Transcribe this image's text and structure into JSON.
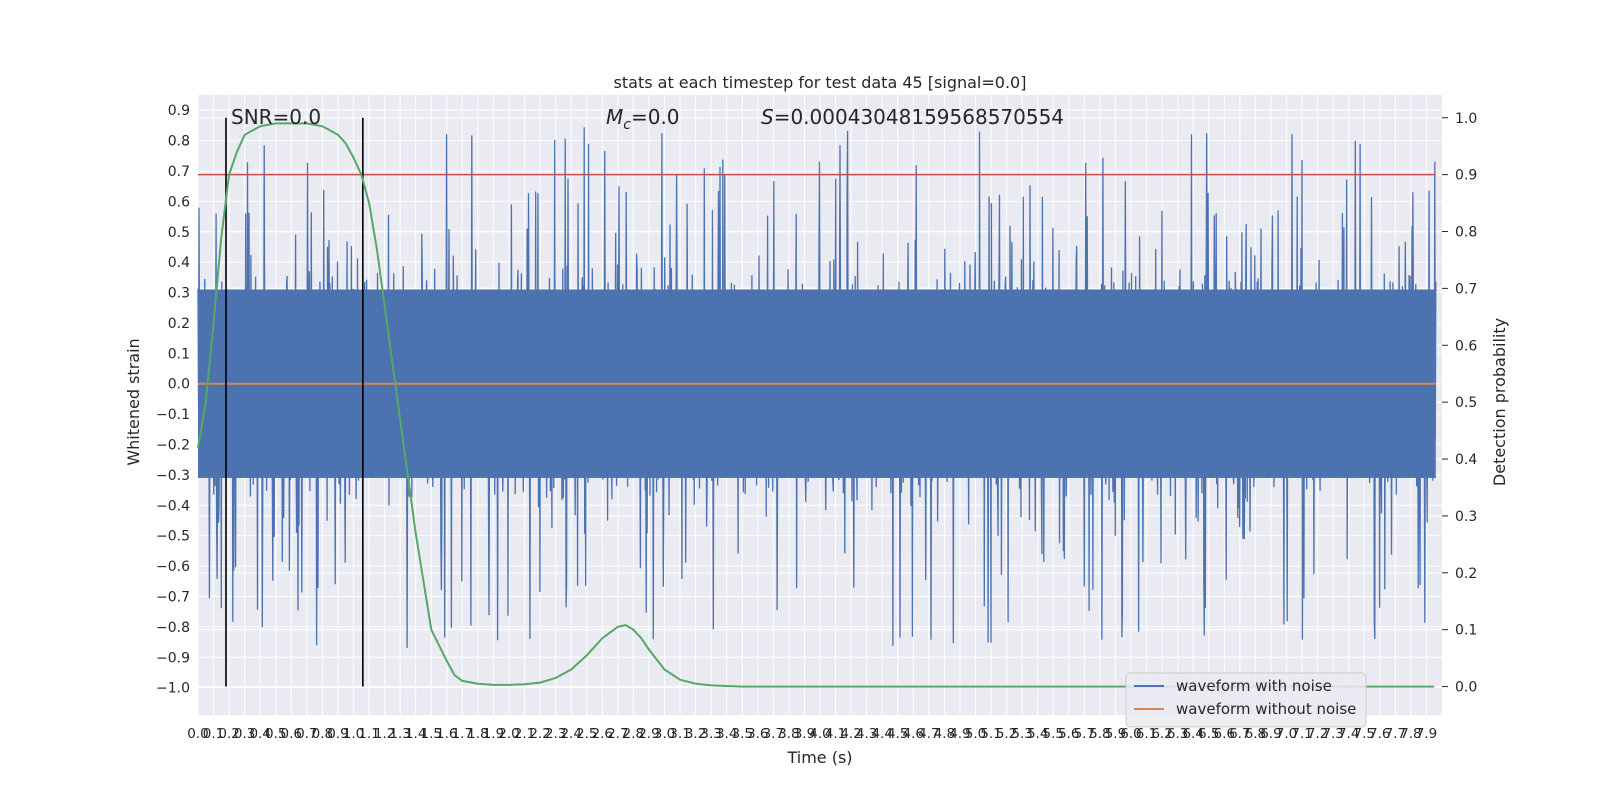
{
  "chart_data": {
    "type": "line",
    "title": "stats at each timestep for test data 45 [signal=0.0]",
    "xlabel": "Time (s)",
    "ylabel": "Whitened strain",
    "y2label": "Detection probability",
    "xlim": [
      0.0,
      8.0
    ],
    "ylim": [
      -1.09,
      0.95
    ],
    "y2lim": [
      -0.05,
      1.04
    ],
    "grid": true,
    "x_ticks": [
      "0.0",
      "0.1",
      "0.2",
      "0.3",
      "0.4",
      "0.5",
      "0.6",
      "0.7",
      "0.8",
      "0.9",
      "1.0",
      "1.1",
      "1.2",
      "1.3",
      "1.4",
      "1.5",
      "1.6",
      "1.7",
      "1.8",
      "1.9",
      "2.0",
      "2.1",
      "2.2",
      "2.3",
      "2.4",
      "2.5",
      "2.6",
      "2.7",
      "2.8",
      "2.9",
      "3.0",
      "3.1",
      "3.2",
      "3.3",
      "3.4",
      "3.5",
      "3.6",
      "3.7",
      "3.8",
      "3.9",
      "4.0",
      "4.1",
      "4.2",
      "4.3",
      "4.4",
      "4.5",
      "4.6",
      "4.7",
      "4.8",
      "4.9",
      "5.0",
      "5.1",
      "5.2",
      "5.3",
      "5.4",
      "5.5",
      "5.6",
      "5.7",
      "5.8",
      "5.9",
      "6.0",
      "6.1",
      "6.2",
      "6.3",
      "6.4",
      "6.5",
      "6.6",
      "6.7",
      "6.8",
      "6.9",
      "7.0",
      "7.1",
      "7.2",
      "7.3",
      "7.4",
      "7.5",
      "7.6",
      "7.7",
      "7.8",
      "7.9"
    ],
    "y_ticks": [
      "0.9",
      "0.8",
      "0.7",
      "0.6",
      "0.5",
      "0.4",
      "0.3",
      "0.2",
      "0.1",
      "0.0",
      "−0.1",
      "−0.2",
      "−0.3",
      "−0.4",
      "−0.5",
      "−0.6",
      "−0.7",
      "−0.8",
      "−0.9",
      "−1.0"
    ],
    "y2_ticks": [
      "1.0",
      "0.9",
      "0.8",
      "0.7",
      "0.6",
      "0.5",
      "0.4",
      "0.3",
      "0.2",
      "0.1",
      "0.0"
    ],
    "annotations": {
      "snr": "SNR=0.0",
      "mc_symbol": "M",
      "mc_sub": "c",
      "mc_value": "=0.0",
      "s_symbol": "S",
      "s_value": "=0.00043048159568570554"
    },
    "threshold": {
      "axis": "y2",
      "value": 0.9,
      "color": "#c44e52"
    },
    "vertical_markers": [
      0.18,
      1.06
    ],
    "series": [
      {
        "name": "waveform with noise",
        "color": "#4c72b0",
        "style": "dense noise, amplitude ≈ ±0.5 with spikes to ≈ ±0.85",
        "seed": 45
      },
      {
        "name": "waveform without noise",
        "color": "#dd8452",
        "value": 0.0
      },
      {
        "name": "detection probability",
        "color": "#55a868",
        "axis": "y2",
        "x": [
          0.0,
          0.05,
          0.1,
          0.15,
          0.2,
          0.25,
          0.3,
          0.4,
          0.5,
          0.6,
          0.7,
          0.8,
          0.9,
          0.95,
          1.0,
          1.05,
          1.1,
          1.15,
          1.2,
          1.3,
          1.4,
          1.5,
          1.6,
          1.65,
          1.7,
          1.8,
          1.9,
          2.0,
          2.1,
          2.2,
          2.3,
          2.4,
          2.5,
          2.6,
          2.7,
          2.75,
          2.8,
          2.85,
          2.9,
          3.0,
          3.1,
          3.2,
          3.3,
          3.4,
          3.5,
          3.6,
          4.0,
          5.0,
          6.0,
          7.0,
          7.95
        ],
        "y": [
          0.42,
          0.5,
          0.64,
          0.79,
          0.9,
          0.94,
          0.97,
          0.985,
          0.99,
          0.99,
          0.99,
          0.985,
          0.97,
          0.955,
          0.93,
          0.9,
          0.85,
          0.77,
          0.67,
          0.47,
          0.27,
          0.1,
          0.045,
          0.02,
          0.01,
          0.005,
          0.003,
          0.003,
          0.004,
          0.007,
          0.015,
          0.03,
          0.055,
          0.085,
          0.105,
          0.108,
          0.1,
          0.085,
          0.065,
          0.03,
          0.012,
          0.005,
          0.002,
          0.001,
          0.0,
          0.0,
          0.0,
          0.0,
          0.0,
          0.0,
          0.0
        ]
      }
    ],
    "legend": {
      "placement": "lower-right",
      "entries": [
        "waveform with noise",
        "waveform without noise"
      ]
    }
  }
}
